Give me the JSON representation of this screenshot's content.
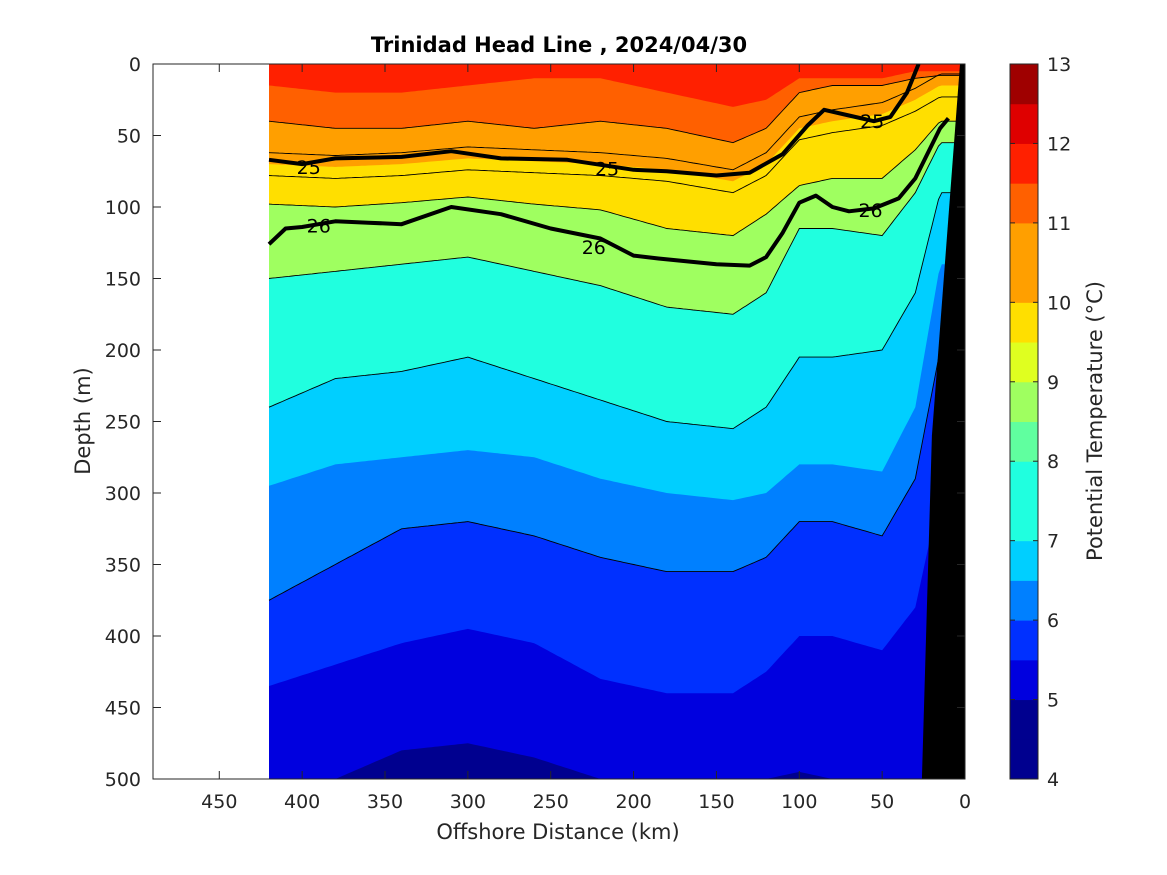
{
  "chart_data": {
    "type": "heatmap",
    "title": "Trinidad Head Line , 2024/04/30",
    "xlabel": "Offshore Distance (km)",
    "ylabel": "Depth (m)",
    "colorbar_label": "Potential Temperature (°C)",
    "xlim": [
      490,
      0
    ],
    "x_reversed": true,
    "ylim": [
      0,
      500
    ],
    "y_reversed": true,
    "x_ticks": [
      450,
      400,
      350,
      300,
      250,
      200,
      150,
      100,
      50,
      0
    ],
    "y_ticks": [
      0,
      50,
      100,
      150,
      200,
      250,
      300,
      350,
      400,
      450,
      500
    ],
    "colorbar_ticks": [
      4,
      5,
      6,
      7,
      8,
      9,
      10,
      11,
      12,
      13
    ],
    "colorbar_range": [
      4,
      13
    ],
    "data_extent_x": [
      420,
      0
    ],
    "colormap": [
      "#00008f",
      "#0000df",
      "#0030ff",
      "#0080ff",
      "#00cfff",
      "#20ffdf",
      "#60ff9f",
      "#9fff60",
      "#dfff20",
      "#ffdf00",
      "#ff9f00",
      "#ff6000",
      "#ff2000",
      "#df0000",
      "#9f0000"
    ],
    "temperature_levels": [
      4,
      4.5,
      5,
      5.5,
      6,
      6.5,
      7,
      7.5,
      8,
      8.5,
      9,
      9.5,
      10,
      10.5,
      11,
      11.5,
      12,
      12.5,
      13
    ],
    "isotherm_depths": {
      "x": [
        420,
        380,
        340,
        300,
        260,
        220,
        180,
        140,
        120,
        100,
        80,
        50,
        30,
        15
      ],
      "t11_5": [
        15,
        20,
        20,
        15,
        10,
        10,
        20,
        30,
        25,
        10,
        10,
        10,
        5,
        5
      ],
      "t11": [
        40,
        45,
        45,
        40,
        45,
        40,
        45,
        55,
        45,
        20,
        15,
        15,
        10,
        8
      ],
      "t10": [
        70,
        72,
        70,
        66,
        68,
        70,
        74,
        82,
        70,
        45,
        40,
        35,
        25,
        15
      ],
      "t9": [
        98,
        100,
        97,
        93,
        98,
        102,
        115,
        120,
        105,
        85,
        80,
        80,
        60,
        40
      ],
      "t8": [
        150,
        145,
        140,
        135,
        145,
        155,
        170,
        175,
        160,
        115,
        115,
        120,
        90,
        55
      ],
      "t7": [
        240,
        220,
        215,
        205,
        220,
        235,
        250,
        255,
        240,
        205,
        205,
        200,
        160,
        90
      ],
      "t6_5": [
        295,
        280,
        275,
        270,
        275,
        290,
        300,
        305,
        300,
        280,
        280,
        285,
        240,
        140
      ],
      "t6": [
        375,
        350,
        325,
        320,
        330,
        345,
        355,
        355,
        345,
        320,
        320,
        330,
        290,
        200
      ],
      "t5_5": [
        435,
        420,
        405,
        395,
        405,
        430,
        440,
        440,
        425,
        400,
        400,
        410,
        380,
        300
      ],
      "t5": [
        500,
        500,
        480,
        475,
        485,
        500,
        500,
        500,
        500,
        495,
        500,
        500,
        500,
        500
      ]
    },
    "isopycnals": [
      {
        "label": "25",
        "x": [
          420,
          400,
          380,
          340,
          310,
          280,
          240,
          200,
          180,
          150,
          130,
          110,
          95,
          85,
          70,
          55,
          45,
          35,
          28
        ],
        "depth": [
          67,
          70,
          66,
          65,
          61,
          66,
          67,
          74,
          75,
          78,
          76,
          63,
          43,
          32,
          36,
          40,
          37,
          20,
          0
        ]
      },
      {
        "label": "26",
        "x": [
          420,
          410,
          400,
          380,
          360,
          340,
          310,
          280,
          250,
          220,
          200,
          185,
          150,
          130,
          120,
          110,
          100,
          90,
          80,
          70,
          55,
          40,
          30,
          15,
          10
        ],
        "depth": [
          126,
          115,
          114,
          110,
          111,
          112,
          100,
          105,
          115,
          122,
          134,
          136,
          140,
          141,
          135,
          118,
          97,
          92,
          100,
          103,
          101,
          94,
          80,
          45,
          38
        ]
      }
    ],
    "contour_labels": [
      {
        "text": "25",
        "x": 396,
        "depth": 72
      },
      {
        "text": "25",
        "x": 216,
        "depth": 73
      },
      {
        "text": "25",
        "x": 56,
        "depth": 40
      },
      {
        "text": "26",
        "x": 390,
        "depth": 113
      },
      {
        "text": "26",
        "x": 224,
        "depth": 128
      },
      {
        "text": "26",
        "x": 57,
        "depth": 102
      }
    ],
    "bathymetry": {
      "x": [
        0,
        3,
        20,
        26,
        0
      ],
      "depth": [
        0,
        0,
        260,
        500,
        500
      ]
    }
  }
}
